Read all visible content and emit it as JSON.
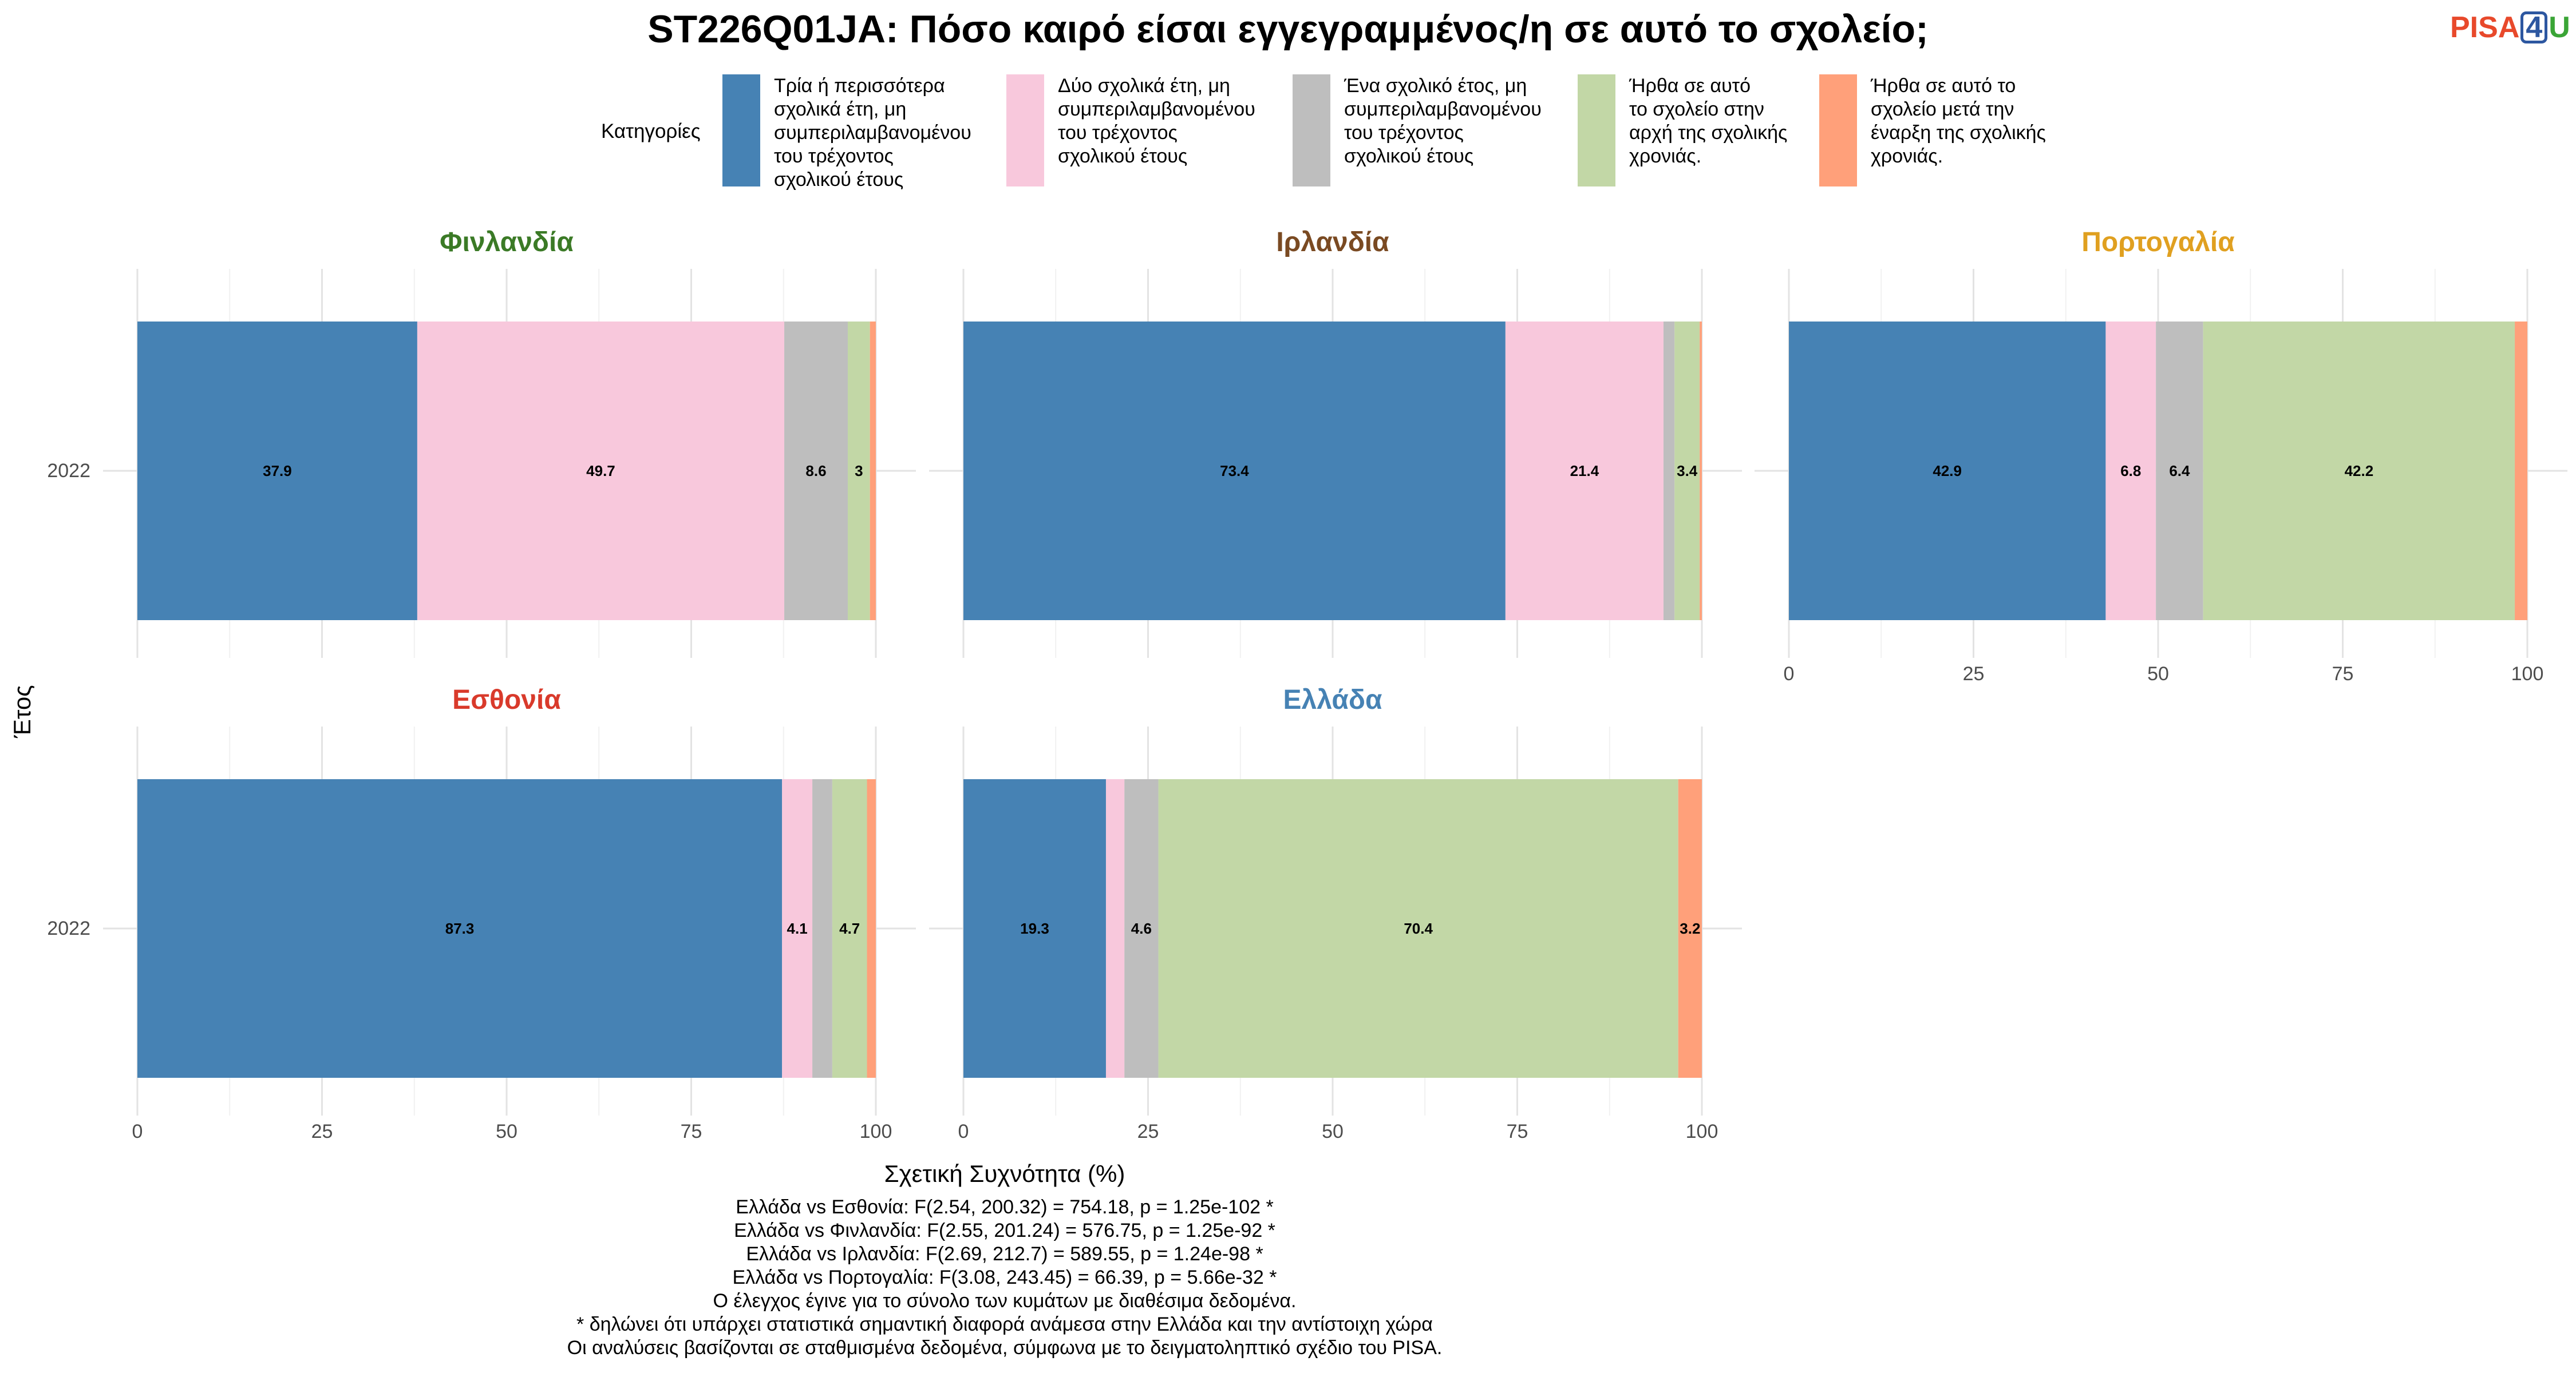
{
  "title": "ST226Q01JA: Πόσο καιρό είσαι εγγεγραμμένος/η σε αυτό το σχολείο;",
  "logo": {
    "pisa": "PISA",
    "four": "4",
    "u": "U"
  },
  "legend": {
    "title": "Κατηγορίες",
    "items": [
      {
        "label": "Τρία ή περισσότερα σχολικά έτη, μη συμπεριλαμβανομένου του τρέχοντος σχολικού έτους",
        "lines": [
          "Τρία ή περισσότερα",
          "σχολικά έτη, μη",
          "συμπεριλαμβανομένου",
          "του τρέχοντος",
          "σχολικού έτους"
        ],
        "color": "#4682b4"
      },
      {
        "label": "Δύο σχολικά έτη, μη συμπεριλαμβανομένου του τρέχοντος σχολικού έτους",
        "lines": [
          "Δύο σχολικά έτη, μη",
          "συμπεριλαμβανομένου",
          "του τρέχοντος",
          "σχολικού έτους"
        ],
        "color": "#f8c8dc"
      },
      {
        "label": "Ένα σχολικό έτος, μη συμπεριλαμβανομένου του τρέχοντος σχολικού έτους",
        "lines": [
          "Ένα σχολικό έτος, μη",
          "συμπεριλαμβανομένου",
          "του τρέχοντος",
          "σχολικού έτους"
        ],
        "color": "#bebebe"
      },
      {
        "label": "Ήρθα σε αυτό το σχολείο στην αρχή της σχολικής χρονιάς.",
        "lines": [
          "Ήρθα σε αυτό",
          "το σχολείο στην",
          "αρχή της σχολικής",
          "χρονιάς."
        ],
        "color": "#c2d7a6"
      },
      {
        "label": "Ήρθα σε αυτό το σχολείο μετά την έναρξη της σχολικής χρονιάς.",
        "lines": [
          "Ήρθα σε αυτό το",
          "σχολείο μετά την",
          "έναρξη της σχολικής",
          "χρονιάς."
        ],
        "color": "#ffa07a"
      }
    ]
  },
  "chart_data": {
    "type": "bar",
    "orientation": "horizontal",
    "stacked": true,
    "xlabel": "Σχετική Συχνότητα (%)",
    "ylabel": "Έτος",
    "xlim": [
      0,
      100
    ],
    "xticks": [
      "0",
      "25",
      "50",
      "75",
      "100"
    ],
    "categories": [
      "2022"
    ],
    "panels": [
      {
        "name": "Φινλανδία",
        "title_color": "#3b7a26",
        "values": [
          37.9,
          49.7,
          8.6,
          3.0,
          0.8
        ],
        "labels": [
          "37.9",
          "49.7",
          "8.6",
          "3",
          ""
        ]
      },
      {
        "name": "Ιρλανδία",
        "title_color": "#7a4a22",
        "values": [
          73.4,
          21.4,
          1.5,
          3.4,
          0.3
        ],
        "labels": [
          "73.4",
          "21.4",
          "",
          "3.4",
          ""
        ]
      },
      {
        "name": "Πορτογαλία",
        "title_color": "#e0a020",
        "values": [
          42.9,
          6.8,
          6.4,
          42.2,
          1.7
        ],
        "labels": [
          "42.9",
          "6.8",
          "6.4",
          "42.2",
          ""
        ]
      },
      {
        "name": "Εσθονία",
        "title_color": "#d93a2b",
        "values": [
          87.3,
          4.1,
          2.7,
          4.7,
          1.2
        ],
        "labels": [
          "87.3",
          "4.1",
          "",
          "4.7",
          ""
        ]
      },
      {
        "name": "Ελλάδα",
        "title_color": "#4682b4",
        "values": [
          19.3,
          2.5,
          4.6,
          70.4,
          3.2
        ],
        "labels": [
          "19.3",
          "",
          "4.6",
          "70.4",
          "3.2"
        ]
      }
    ]
  },
  "caption": [
    "Ελλάδα vs Εσθονία: F(2.54, 200.32) = 754.18, p = 1.25e-102 *",
    "Ελλάδα vs Φινλανδία: F(2.55, 201.24) = 576.75, p = 1.25e-92 *",
    "Ελλάδα vs Ιρλανδία: F(2.69, 212.7) = 589.55, p = 1.24e-98 *",
    "Ελλάδα vs Πορτογαλία: F(3.08, 243.45) = 66.39, p = 5.66e-32 *",
    "Ο έλεγχος έγινε για το σύνολο των κυμάτων με διαθέσιμα δεδομένα.",
    "* δηλώνει ότι υπάρχει στατιστικά σημαντική διαφορά ανάμεσα στην Ελλάδα και την αντίστοιχη χώρα",
    "Οι αναλύσεις βασίζονται σε σταθμισμένα δεδομένα, σύμφωνα με το δειγματοληπτικό σχέδιο του PISA."
  ]
}
